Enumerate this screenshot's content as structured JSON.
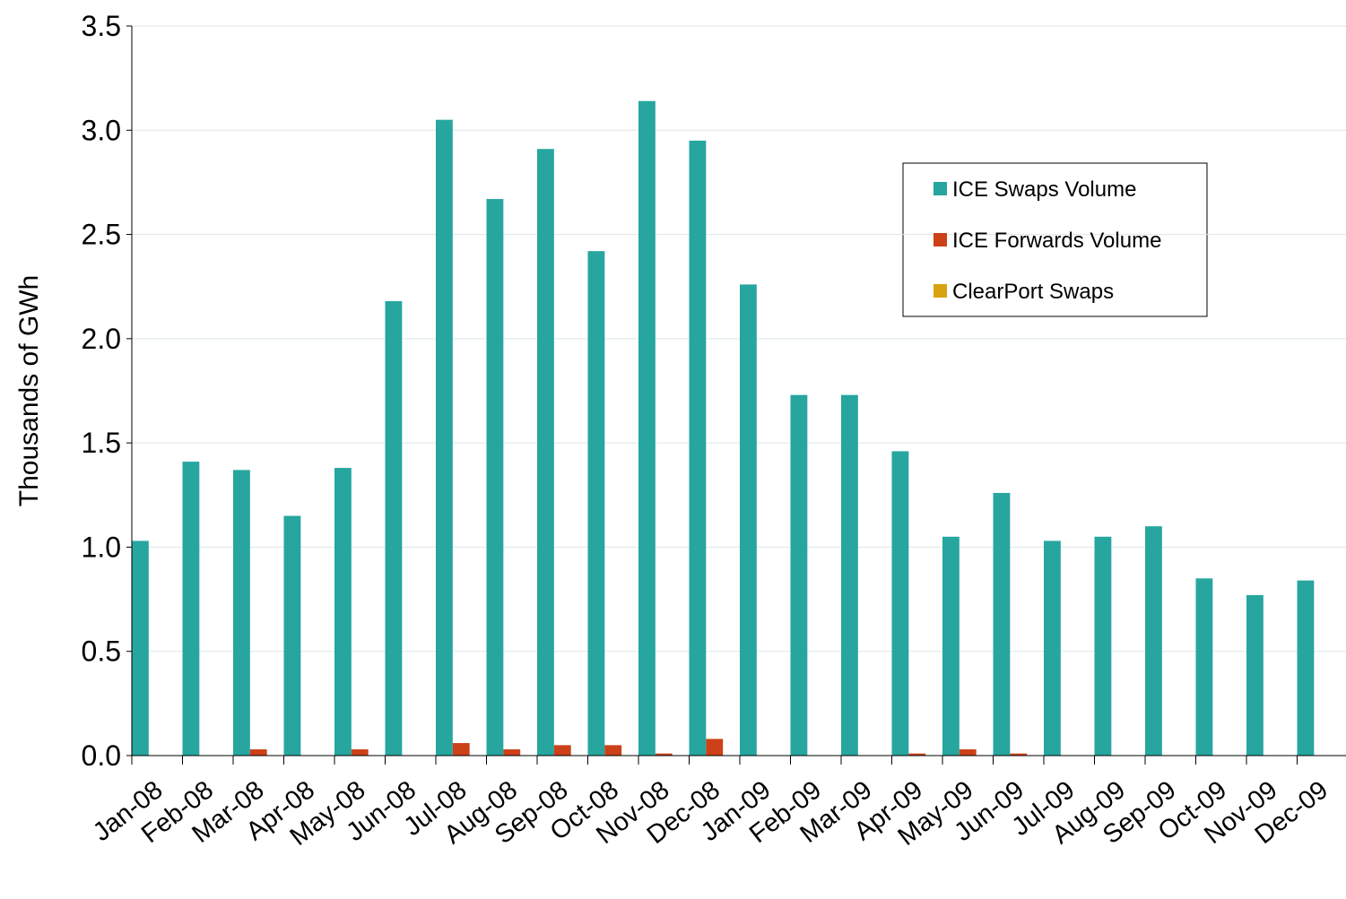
{
  "chart_data": {
    "type": "bar",
    "y_label": "Thousands of GWh",
    "categories": [
      "Jan-08",
      "Feb-08",
      "Mar-08",
      "Apr-08",
      "May-08",
      "Jun-08",
      "Jul-08",
      "Aug-08",
      "Sep-08",
      "Oct-08",
      "Nov-08",
      "Dec-08",
      "Jan-09",
      "Feb-09",
      "Mar-09",
      "Apr-09",
      "May-09",
      "Jun-09",
      "Jul-09",
      "Aug-09",
      "Sep-09",
      "Oct-09",
      "Nov-09",
      "Dec-09"
    ],
    "series": [
      {
        "name": "ICE Swaps Volume",
        "color": "#26a69f",
        "values": [
          1.03,
          1.41,
          1.37,
          1.15,
          1.38,
          2.18,
          3.05,
          2.67,
          2.91,
          2.42,
          3.14,
          2.95,
          2.26,
          1.73,
          1.73,
          1.46,
          1.05,
          1.26,
          1.03,
          1.05,
          1.1,
          0.85,
          0.77,
          0.84
        ]
      },
      {
        "name": "ICE Forwards Volume",
        "color": "#cc4118",
        "values": [
          0,
          0,
          0.03,
          0,
          0.03,
          0,
          0.06,
          0.03,
          0.05,
          0.05,
          0.01,
          0.08,
          0,
          0,
          0,
          0.01,
          0.03,
          0.01,
          0,
          0,
          0,
          0,
          0,
          0
        ]
      },
      {
        "name": "ClearPort Swaps",
        "color": "#d9a20f",
        "values": [
          0,
          0,
          0,
          0,
          0,
          0,
          0,
          0,
          0,
          0,
          0,
          0,
          0,
          0,
          0,
          0,
          0,
          0,
          0,
          0,
          0,
          0,
          0,
          0
        ]
      }
    ],
    "ylim": [
      0,
      3.5
    ],
    "yticks": [
      {
        "value": 0,
        "label": "0.0"
      },
      0.5,
      {
        "value": 1,
        "label": "1.0"
      },
      1.5,
      {
        "value": 2,
        "label": "2.0"
      },
      2.5,
      {
        "value": 3,
        "label": "3.0"
      },
      3.5
    ],
    "grid": true
  }
}
